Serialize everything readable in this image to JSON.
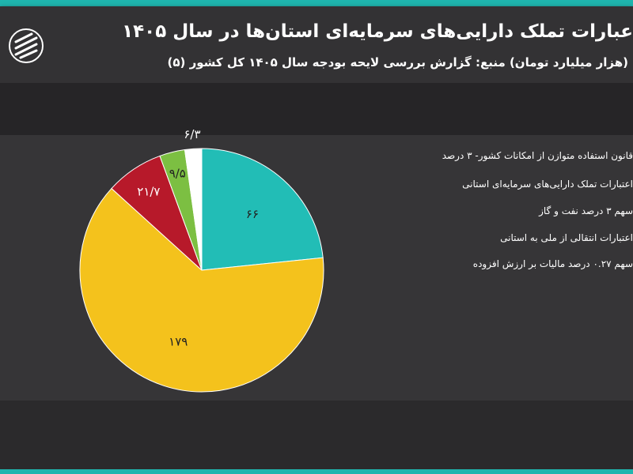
{
  "header": {
    "title": "عبارات تملک دارایی‌های سرمایه‌ای استان‌ها در سال ۱۴۰۵",
    "subtitle": "(هزار میلیارد تومان) منبع: گزارش بررسی لایحه بودجه سال ۱۴۰۵ کل کشور (۵)"
  },
  "colors": {
    "teal": "#22bdb6",
    "yellow": "#f4c21c",
    "red": "#b7192a",
    "green": "#7cbf42",
    "white": "#ffffff",
    "accent": "#1fb5ae"
  },
  "chart_data": {
    "type": "pie",
    "start_angle_deg": 0,
    "direction": "clockwise",
    "slices": [
      {
        "label": "۶۶",
        "value": 66,
        "color": "#22bdb6"
      },
      {
        "label": "۱۷۹",
        "value": 179,
        "color": "#f4c21c"
      },
      {
        "label": "۲۱/۷",
        "value": 21.7,
        "color": "#b7192a"
      },
      {
        "label": "۹/۵",
        "value": 9.5,
        "color": "#7cbf42"
      },
      {
        "label": "۶/۳",
        "value": 6.3,
        "color": "#ffffff"
      }
    ],
    "legend": [
      "قانون استفاده متوازن از امکانات کشور- ۳ درصد",
      "اعتبارات تملک دارایی‌های سرمایه‌ای استانی",
      "سهم ۳ درصد نفت و گاز",
      "اعتبارات انتقالی از ملی به استانی",
      "سهم ۰.۲۷ درصد مالیات بر ارزش افزوده"
    ],
    "legend_position": "right"
  }
}
